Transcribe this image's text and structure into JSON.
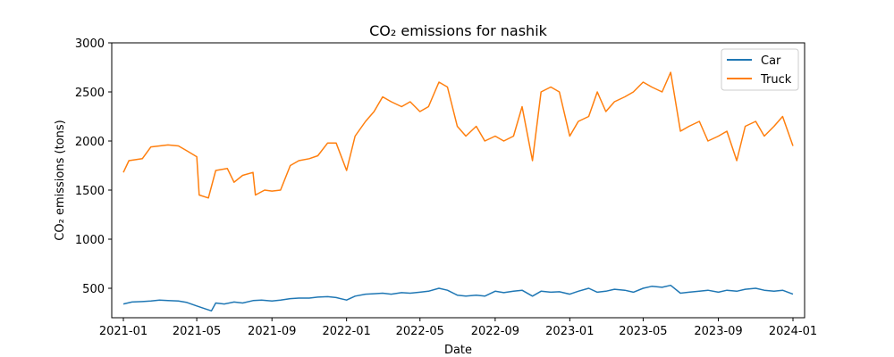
{
  "chart_data": {
    "type": "line",
    "title": "CO₂ emissions for nashik",
    "xlabel": "Date",
    "ylabel": "CO₂ emissions (tons)",
    "xlim": [
      "2020-12-13",
      "2024-01-20"
    ],
    "ylim": [
      200,
      3000
    ],
    "x_ticks": [
      "2021-01",
      "2021-05",
      "2021-09",
      "2022-01",
      "2022-05",
      "2022-09",
      "2023-01",
      "2023-05",
      "2023-09",
      "2024-01"
    ],
    "y_ticks": [
      500,
      1000,
      1500,
      2000,
      2500,
      3000
    ],
    "grid": false,
    "legend": "top-right",
    "series": [
      {
        "name": "Car",
        "color": "#1f77b4",
        "points": [
          [
            "2021-01-01",
            340
          ],
          [
            "2021-01-15",
            360
          ],
          [
            "2021-02-01",
            365
          ],
          [
            "2021-02-15",
            370
          ],
          [
            "2021-03-01",
            380
          ],
          [
            "2021-03-15",
            375
          ],
          [
            "2021-04-01",
            370
          ],
          [
            "2021-04-15",
            355
          ],
          [
            "2021-05-01",
            320
          ],
          [
            "2021-05-15",
            290
          ],
          [
            "2021-05-25",
            270
          ],
          [
            "2021-06-01",
            350
          ],
          [
            "2021-06-15",
            340
          ],
          [
            "2021-07-01",
            360
          ],
          [
            "2021-07-15",
            350
          ],
          [
            "2021-08-01",
            375
          ],
          [
            "2021-08-15",
            380
          ],
          [
            "2021-09-01",
            370
          ],
          [
            "2021-09-15",
            380
          ],
          [
            "2021-10-01",
            395
          ],
          [
            "2021-10-15",
            400
          ],
          [
            "2021-11-01",
            400
          ],
          [
            "2021-11-15",
            410
          ],
          [
            "2021-12-01",
            415
          ],
          [
            "2021-12-15",
            405
          ],
          [
            "2022-01-01",
            380
          ],
          [
            "2022-01-15",
            420
          ],
          [
            "2022-02-01",
            440
          ],
          [
            "2022-02-15",
            445
          ],
          [
            "2022-03-01",
            450
          ],
          [
            "2022-03-15",
            440
          ],
          [
            "2022-04-01",
            455
          ],
          [
            "2022-04-15",
            450
          ],
          [
            "2022-05-01",
            460
          ],
          [
            "2022-05-15",
            470
          ],
          [
            "2022-06-01",
            500
          ],
          [
            "2022-06-15",
            480
          ],
          [
            "2022-07-01",
            430
          ],
          [
            "2022-07-15",
            420
          ],
          [
            "2022-08-01",
            430
          ],
          [
            "2022-08-15",
            420
          ],
          [
            "2022-09-01",
            470
          ],
          [
            "2022-09-15",
            455
          ],
          [
            "2022-10-01",
            470
          ],
          [
            "2022-10-15",
            480
          ],
          [
            "2022-11-01",
            420
          ],
          [
            "2022-11-15",
            470
          ],
          [
            "2022-12-01",
            460
          ],
          [
            "2022-12-15",
            465
          ],
          [
            "2023-01-01",
            440
          ],
          [
            "2023-01-15",
            470
          ],
          [
            "2023-02-01",
            500
          ],
          [
            "2023-02-15",
            460
          ],
          [
            "2023-03-01",
            470
          ],
          [
            "2023-03-15",
            490
          ],
          [
            "2023-04-01",
            480
          ],
          [
            "2023-04-15",
            460
          ],
          [
            "2023-05-01",
            500
          ],
          [
            "2023-05-15",
            520
          ],
          [
            "2023-06-01",
            510
          ],
          [
            "2023-06-15",
            530
          ],
          [
            "2023-07-01",
            450
          ],
          [
            "2023-07-15",
            460
          ],
          [
            "2023-08-01",
            470
          ],
          [
            "2023-08-15",
            480
          ],
          [
            "2023-09-01",
            460
          ],
          [
            "2023-09-15",
            480
          ],
          [
            "2023-10-01",
            470
          ],
          [
            "2023-10-15",
            490
          ],
          [
            "2023-11-01",
            500
          ],
          [
            "2023-11-15",
            480
          ],
          [
            "2023-12-01",
            470
          ],
          [
            "2023-12-15",
            480
          ],
          [
            "2024-01-01",
            440
          ]
        ]
      },
      {
        "name": "Truck",
        "color": "#ff7f0e",
        "points": [
          [
            "2021-01-01",
            1680
          ],
          [
            "2021-01-10",
            1800
          ],
          [
            "2021-02-01",
            1820
          ],
          [
            "2021-02-15",
            1940
          ],
          [
            "2021-03-01",
            1950
          ],
          [
            "2021-03-15",
            1960
          ],
          [
            "2021-04-01",
            1950
          ],
          [
            "2021-04-15",
            1900
          ],
          [
            "2021-05-01",
            1840
          ],
          [
            "2021-05-05",
            1450
          ],
          [
            "2021-05-20",
            1420
          ],
          [
            "2021-06-01",
            1700
          ],
          [
            "2021-06-20",
            1720
          ],
          [
            "2021-07-01",
            1580
          ],
          [
            "2021-07-15",
            1650
          ],
          [
            "2021-08-01",
            1680
          ],
          [
            "2021-08-05",
            1450
          ],
          [
            "2021-08-20",
            1500
          ],
          [
            "2021-09-01",
            1490
          ],
          [
            "2021-09-15",
            1500
          ],
          [
            "2021-10-01",
            1750
          ],
          [
            "2021-10-15",
            1800
          ],
          [
            "2021-11-01",
            1820
          ],
          [
            "2021-11-15",
            1850
          ],
          [
            "2021-12-01",
            1980
          ],
          [
            "2021-12-15",
            1980
          ],
          [
            "2022-01-01",
            1700
          ],
          [
            "2022-01-15",
            2050
          ],
          [
            "2022-02-01",
            2200
          ],
          [
            "2022-02-15",
            2300
          ],
          [
            "2022-03-01",
            2450
          ],
          [
            "2022-03-15",
            2400
          ],
          [
            "2022-04-01",
            2350
          ],
          [
            "2022-04-15",
            2400
          ],
          [
            "2022-05-01",
            2300
          ],
          [
            "2022-05-15",
            2350
          ],
          [
            "2022-06-01",
            2600
          ],
          [
            "2022-06-15",
            2550
          ],
          [
            "2022-07-01",
            2150
          ],
          [
            "2022-07-15",
            2050
          ],
          [
            "2022-08-01",
            2150
          ],
          [
            "2022-08-15",
            2000
          ],
          [
            "2022-09-01",
            2050
          ],
          [
            "2022-09-15",
            2000
          ],
          [
            "2022-10-01",
            2050
          ],
          [
            "2022-10-15",
            2350
          ],
          [
            "2022-11-01",
            1800
          ],
          [
            "2022-11-15",
            2500
          ],
          [
            "2022-12-01",
            2550
          ],
          [
            "2022-12-15",
            2500
          ],
          [
            "2023-01-01",
            2050
          ],
          [
            "2023-01-15",
            2200
          ],
          [
            "2023-02-01",
            2250
          ],
          [
            "2023-02-15",
            2500
          ],
          [
            "2023-03-01",
            2300
          ],
          [
            "2023-03-15",
            2400
          ],
          [
            "2023-04-01",
            2450
          ],
          [
            "2023-04-15",
            2500
          ],
          [
            "2023-05-01",
            2600
          ],
          [
            "2023-05-15",
            2550
          ],
          [
            "2023-06-01",
            2500
          ],
          [
            "2023-06-15",
            2700
          ],
          [
            "2023-07-01",
            2100
          ],
          [
            "2023-07-15",
            2150
          ],
          [
            "2023-08-01",
            2200
          ],
          [
            "2023-08-15",
            2000
          ],
          [
            "2023-09-01",
            2050
          ],
          [
            "2023-09-15",
            2100
          ],
          [
            "2023-10-01",
            1800
          ],
          [
            "2023-10-15",
            2150
          ],
          [
            "2023-11-01",
            2200
          ],
          [
            "2023-11-15",
            2050
          ],
          [
            "2023-12-01",
            2150
          ],
          [
            "2023-12-15",
            2250
          ],
          [
            "2024-01-01",
            1950
          ]
        ]
      }
    ]
  }
}
